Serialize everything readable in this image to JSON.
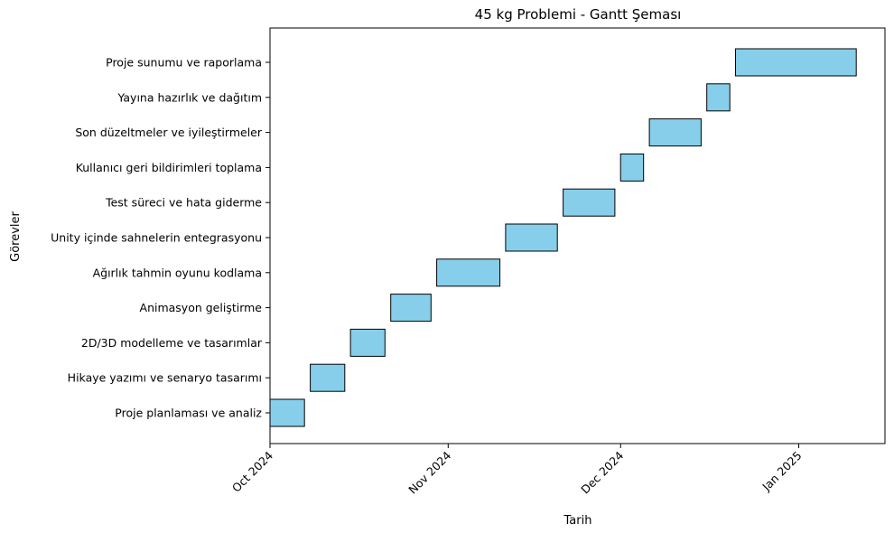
{
  "chart_data": {
    "type": "gantt",
    "title": "45 kg Problemi - Gantt Şeması",
    "xlabel": "Tarih",
    "ylabel": "Görevler",
    "xlim": [
      "2024-10-01",
      "2025-01-16"
    ],
    "grid": false,
    "legend": "none",
    "bar_color": "#87CEEB",
    "bar_edge_color": "#000000",
    "x_ticks": [
      {
        "date": "2024-10-01",
        "label": "Oct 2024"
      },
      {
        "date": "2024-11-01",
        "label": "Nov 2024"
      },
      {
        "date": "2024-12-01",
        "label": "Dec 2024"
      },
      {
        "date": "2025-01-01",
        "label": "Jan 2025"
      }
    ],
    "tasks": [
      {
        "name": "Proje planlaması ve analiz",
        "start": "2024-10-01",
        "end": "2024-10-07"
      },
      {
        "name": "Hikaye yazımı ve senaryo tasarımı",
        "start": "2024-10-08",
        "end": "2024-10-14"
      },
      {
        "name": "2D/3D modelleme ve tasarımlar",
        "start": "2024-10-15",
        "end": "2024-10-21"
      },
      {
        "name": "Animasyon geliştirme",
        "start": "2024-10-22",
        "end": "2024-10-29"
      },
      {
        "name": "Ağırlık tahmin oyunu kodlama",
        "start": "2024-10-30",
        "end": "2024-11-10"
      },
      {
        "name": "Unity içinde sahnelerin entegrasyonu",
        "start": "2024-11-11",
        "end": "2024-11-20"
      },
      {
        "name": "Test süreci ve hata giderme",
        "start": "2024-11-21",
        "end": "2024-11-30"
      },
      {
        "name": "Kullanıcı geri bildirimleri toplama",
        "start": "2024-12-01",
        "end": "2024-12-05"
      },
      {
        "name": "Son düzeltmeler ve iyileştirmeler",
        "start": "2024-12-06",
        "end": "2024-12-15"
      },
      {
        "name": "Yayına hazırlık ve dağıtım",
        "start": "2024-12-16",
        "end": "2024-12-20"
      },
      {
        "name": "Proje sunumu ve raporlama",
        "start": "2024-12-21",
        "end": "2025-01-11"
      }
    ]
  }
}
